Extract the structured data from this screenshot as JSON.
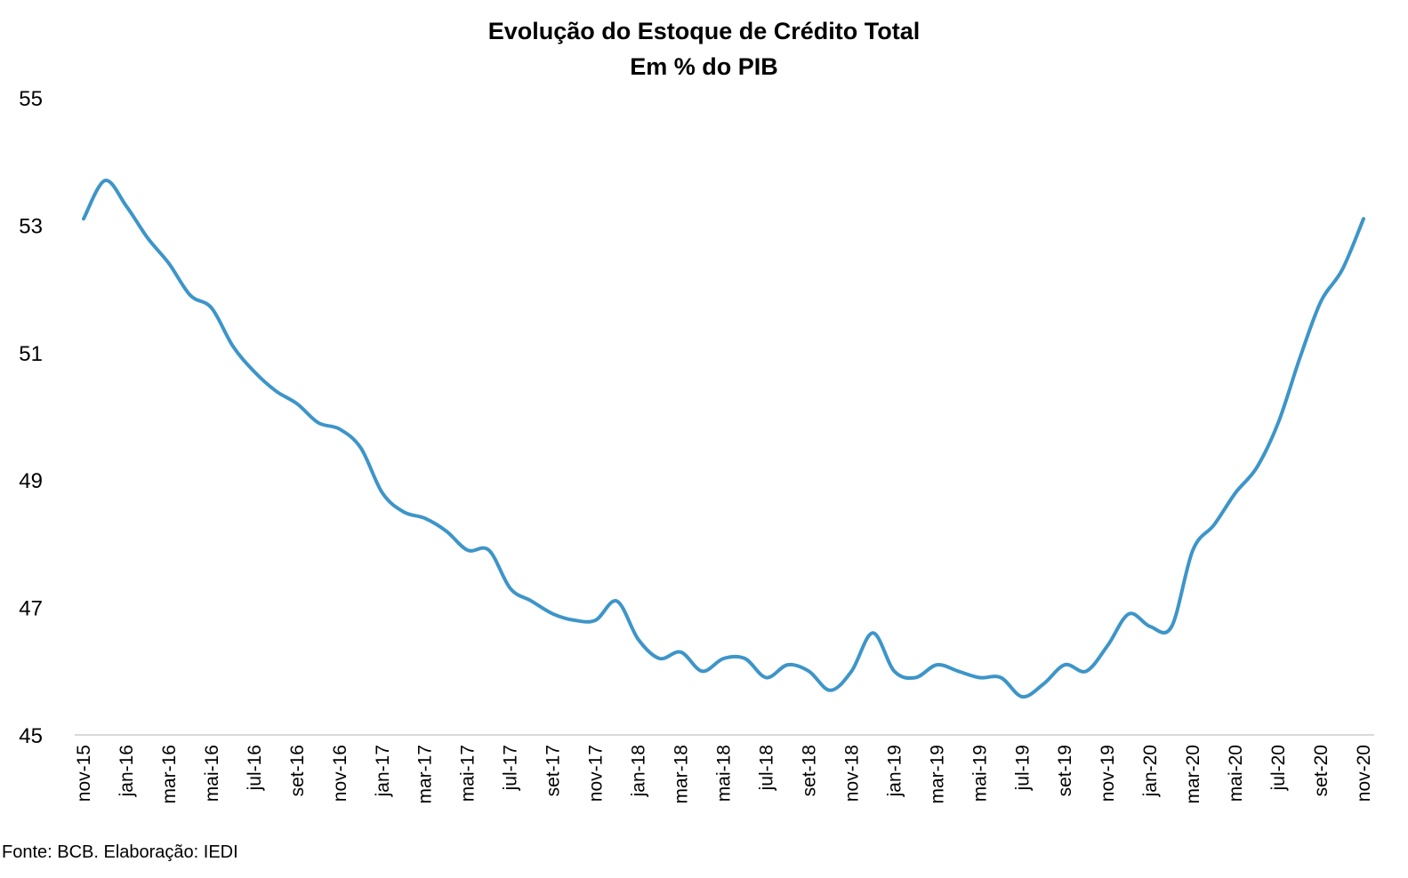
{
  "chart_data": {
    "type": "line",
    "title": "Evolução do Estoque de Crédito Total",
    "subtitle": "Em % do PIB",
    "xlabel": "",
    "ylabel": "",
    "ylim": [
      45,
      55
    ],
    "yticks": [
      45,
      47,
      49,
      51,
      53,
      55
    ],
    "grid": false,
    "legend": "none",
    "line_color": "#3d95c9",
    "x_tick_labels": [
      "nov-15",
      "jan-16",
      "mar-16",
      "mai-16",
      "jul-16",
      "set-16",
      "nov-16",
      "jan-17",
      "mar-17",
      "mai-17",
      "jul-17",
      "set-17",
      "nov-17",
      "jan-18",
      "mar-18",
      "mai-18",
      "jul-18",
      "set-18",
      "nov-18",
      "jan-19",
      "mar-19",
      "mai-19",
      "jul-19",
      "set-19",
      "nov-19",
      "jan-20",
      "mar-20",
      "mai-20",
      "jul-20",
      "set-20",
      "nov-20"
    ],
    "x": [
      "nov-15",
      "dez-15",
      "jan-16",
      "fev-16",
      "mar-16",
      "abr-16",
      "mai-16",
      "jun-16",
      "jul-16",
      "ago-16",
      "set-16",
      "out-16",
      "nov-16",
      "dez-16",
      "jan-17",
      "fev-17",
      "mar-17",
      "abr-17",
      "mai-17",
      "jun-17",
      "jul-17",
      "ago-17",
      "set-17",
      "out-17",
      "nov-17",
      "dez-17",
      "jan-18",
      "fev-18",
      "mar-18",
      "abr-18",
      "mai-18",
      "jun-18",
      "jul-18",
      "ago-18",
      "set-18",
      "out-18",
      "nov-18",
      "dez-18",
      "jan-19",
      "fev-19",
      "mar-19",
      "abr-19",
      "mai-19",
      "jun-19",
      "jul-19",
      "ago-19",
      "set-19",
      "out-19",
      "nov-19",
      "dez-19",
      "jan-20",
      "fev-20",
      "mar-20",
      "abr-20",
      "mai-20",
      "jun-20",
      "jul-20",
      "ago-20",
      "set-20",
      "out-20",
      "nov-20"
    ],
    "series": [
      {
        "values": [
          53.1,
          53.7,
          53.3,
          52.8,
          52.4,
          51.9,
          51.7,
          51.1,
          50.7,
          50.4,
          50.2,
          49.9,
          49.8,
          49.5,
          48.8,
          48.5,
          48.4,
          48.2,
          47.9,
          47.9,
          47.3,
          47.1,
          46.9,
          46.8,
          46.8,
          47.1,
          46.5,
          46.2,
          46.3,
          46.0,
          46.2,
          46.2,
          45.9,
          46.1,
          46.0,
          45.7,
          46.0,
          46.6,
          46.0,
          45.9,
          46.1,
          46.0,
          45.9,
          45.9,
          45.6,
          45.8,
          46.1,
          46.0,
          46.4,
          46.9,
          46.7,
          46.7,
          47.9,
          48.3,
          48.8,
          49.2,
          49.9,
          50.9,
          51.8,
          52.3,
          53.1
        ]
      }
    ]
  },
  "footer": {
    "source": "Fonte: BCB. Elaboração: IEDI"
  }
}
